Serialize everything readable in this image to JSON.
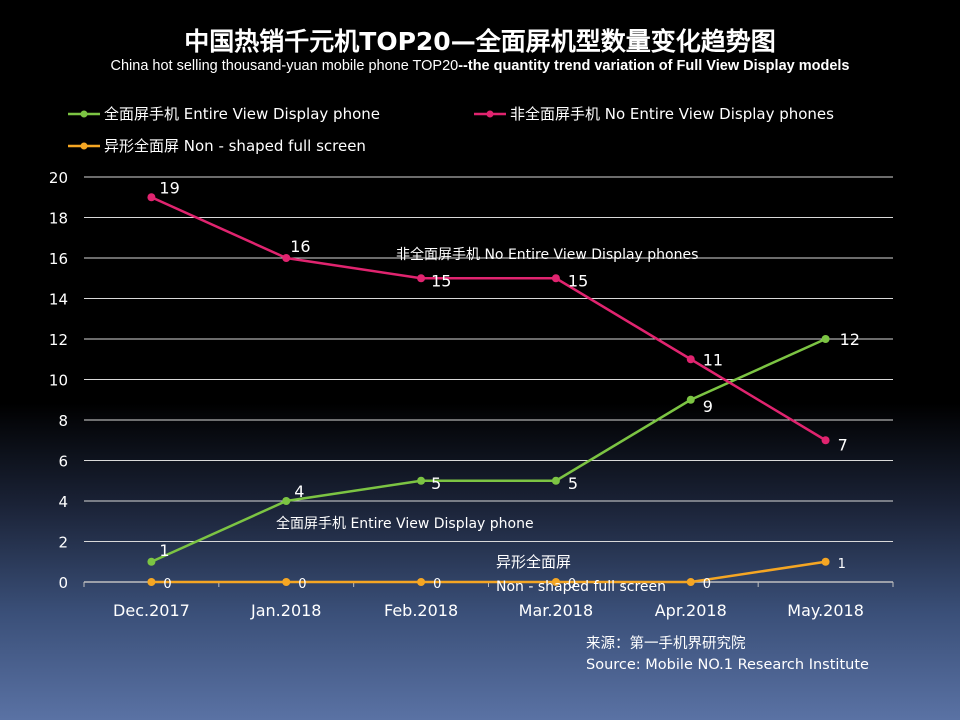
{
  "title": "中国热销千元机TOP20—全面屏机型数量变化趋势图",
  "subtitle_main": "China hot selling thousand-yuan mobile phone TOP20",
  "subtitle_bold": "--the quantity trend variation of Full View Display models",
  "source_line1": "来源：第一手机界研究院",
  "source_line2": "Source: Mobile NO.1 Research Institute",
  "chart_data": {
    "type": "line",
    "title": "中国热销千元机TOP20—全面屏机型数量变化趋势图",
    "categories": [
      "Dec.2017",
      "Jan.2018",
      "Feb.2018",
      "Mar.2018",
      "Apr.2018",
      "May.2018"
    ],
    "ylim": [
      0,
      20
    ],
    "yticks": [
      0,
      2,
      4,
      6,
      8,
      10,
      12,
      14,
      16,
      18,
      20
    ],
    "grid": true,
    "legend_position": "top-left",
    "series": [
      {
        "name": "全面屏手机  Entire View Display phone",
        "color": "#7cc443",
        "values": [
          1,
          4,
          5,
          5,
          9,
          12
        ]
      },
      {
        "name": "非全面屏手机  No Entire View Display phones",
        "color": "#e0246f",
        "values": [
          19,
          16,
          15,
          15,
          11,
          7
        ]
      },
      {
        "name": "异形全面屏 Non - shaped full screen",
        "color": "#f5a623",
        "values": [
          0,
          0,
          0,
          0,
          0,
          1
        ]
      }
    ],
    "annotations": [
      {
        "series": 1,
        "text": "非全面屏手机  No Entire View Display phones"
      },
      {
        "series": 0,
        "text": "全面屏手机  Entire View Display phone"
      },
      {
        "series": 2,
        "text": "异形全面屏"
      },
      {
        "series": 2,
        "text": "Non - shaped full screen"
      }
    ]
  }
}
